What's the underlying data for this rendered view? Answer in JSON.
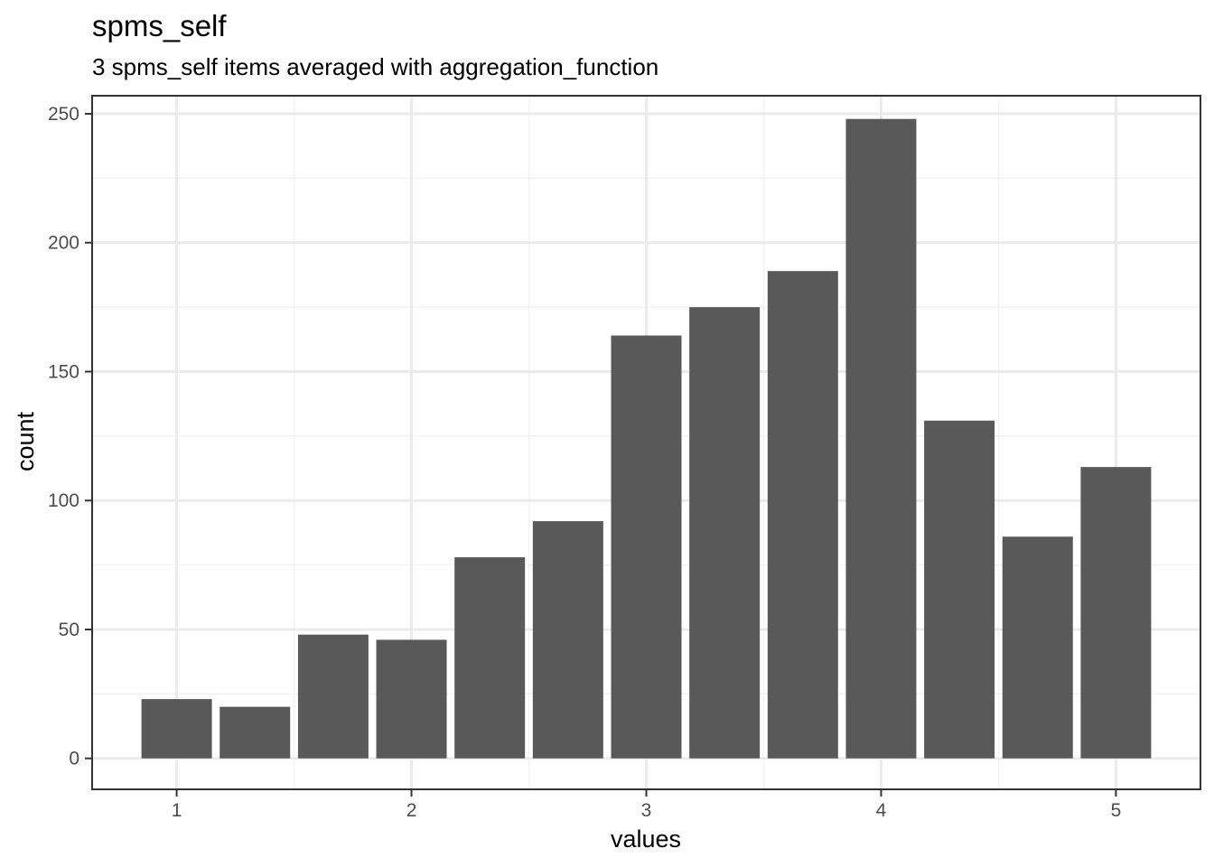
{
  "chart_data": {
    "type": "bar",
    "title": "spms_self",
    "subtitle": "3 spms_self items averaged with aggregation_function",
    "xlabel": "values",
    "ylabel": "count",
    "x": [
      1.0,
      1.3333,
      1.6667,
      2.0,
      2.3333,
      2.6667,
      3.0,
      3.3333,
      3.6667,
      4.0,
      4.3333,
      4.6667,
      5.0
    ],
    "values": [
      23,
      20,
      48,
      46,
      78,
      92,
      164,
      175,
      189,
      248,
      131,
      86,
      113
    ],
    "xlim": [
      0.64,
      5.36
    ],
    "ylim": [
      -12,
      257
    ],
    "x_ticks": [
      1,
      2,
      3,
      4,
      5
    ],
    "x_tick_labels": [
      "1",
      "2",
      "3",
      "4",
      "5"
    ],
    "y_ticks": [
      0,
      50,
      100,
      150,
      200,
      250
    ],
    "y_tick_labels": [
      "0",
      "50",
      "100",
      "150",
      "200",
      "250"
    ],
    "grid": true,
    "colors": {
      "bar": "#595959",
      "grid_major": "#ebebeb",
      "grid_minor": "#f3f3f3",
      "panel_border": "#333333"
    }
  }
}
